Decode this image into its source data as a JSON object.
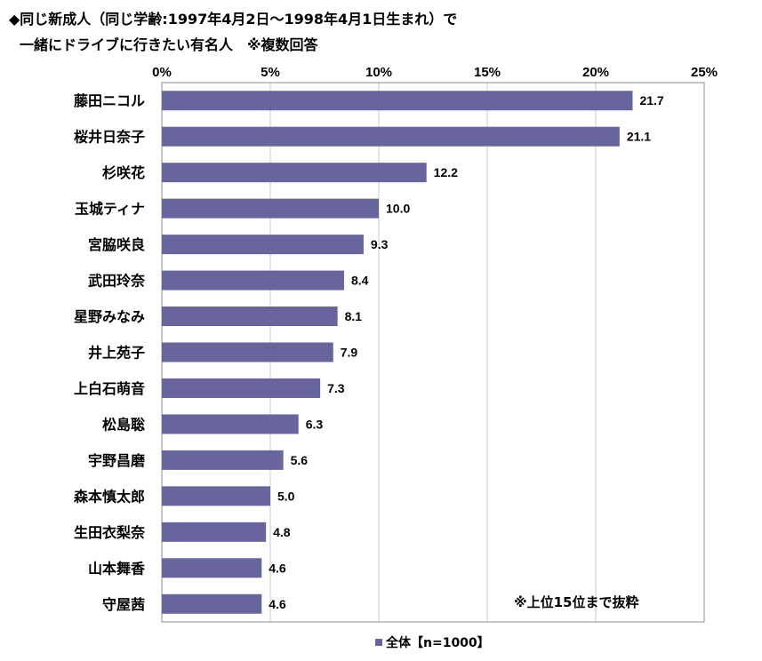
{
  "chart_data": {
    "type": "bar",
    "orientation": "horizontal",
    "title_line1": "◆同じ新成人（同じ学齢:1997年4月2日～1998年4月1日生まれ）で",
    "title_line2": "一緒にドライブに行きたい有名人　※複数回答",
    "categories": [
      "藤田ニコル",
      "桜井日奈子",
      "杉咲花",
      "玉城ティナ",
      "宮脇咲良",
      "武田玲奈",
      "星野みなみ",
      "井上苑子",
      "上白石萌音",
      "松島聡",
      "宇野昌磨",
      "森本慎太郎",
      "生田衣梨奈",
      "山本舞香",
      "守屋茜"
    ],
    "series": [
      {
        "name": "全体【n=1000】",
        "values": [
          21.7,
          21.1,
          12.2,
          10.0,
          9.3,
          8.4,
          8.1,
          7.9,
          7.3,
          6.3,
          5.6,
          5.0,
          4.8,
          4.6,
          4.6
        ],
        "color": "#67659b"
      }
    ],
    "value_labels": [
      "21.7",
      "21.1",
      "12.2",
      "10.0",
      "9.3",
      "8.4",
      "8.1",
      "7.9",
      "7.3",
      "6.3",
      "5.6",
      "5.0",
      "4.8",
      "4.6",
      "4.6"
    ],
    "xlim": [
      0,
      25
    ],
    "xticks": [
      0,
      5,
      10,
      15,
      20,
      25
    ],
    "xtick_labels": [
      "0%",
      "5%",
      "10%",
      "15%",
      "20%",
      "25%"
    ],
    "grid": true,
    "note": "※上位15位まで抜粋",
    "legend_label": "全体【n=1000】",
    "legend_position": "bottom"
  }
}
